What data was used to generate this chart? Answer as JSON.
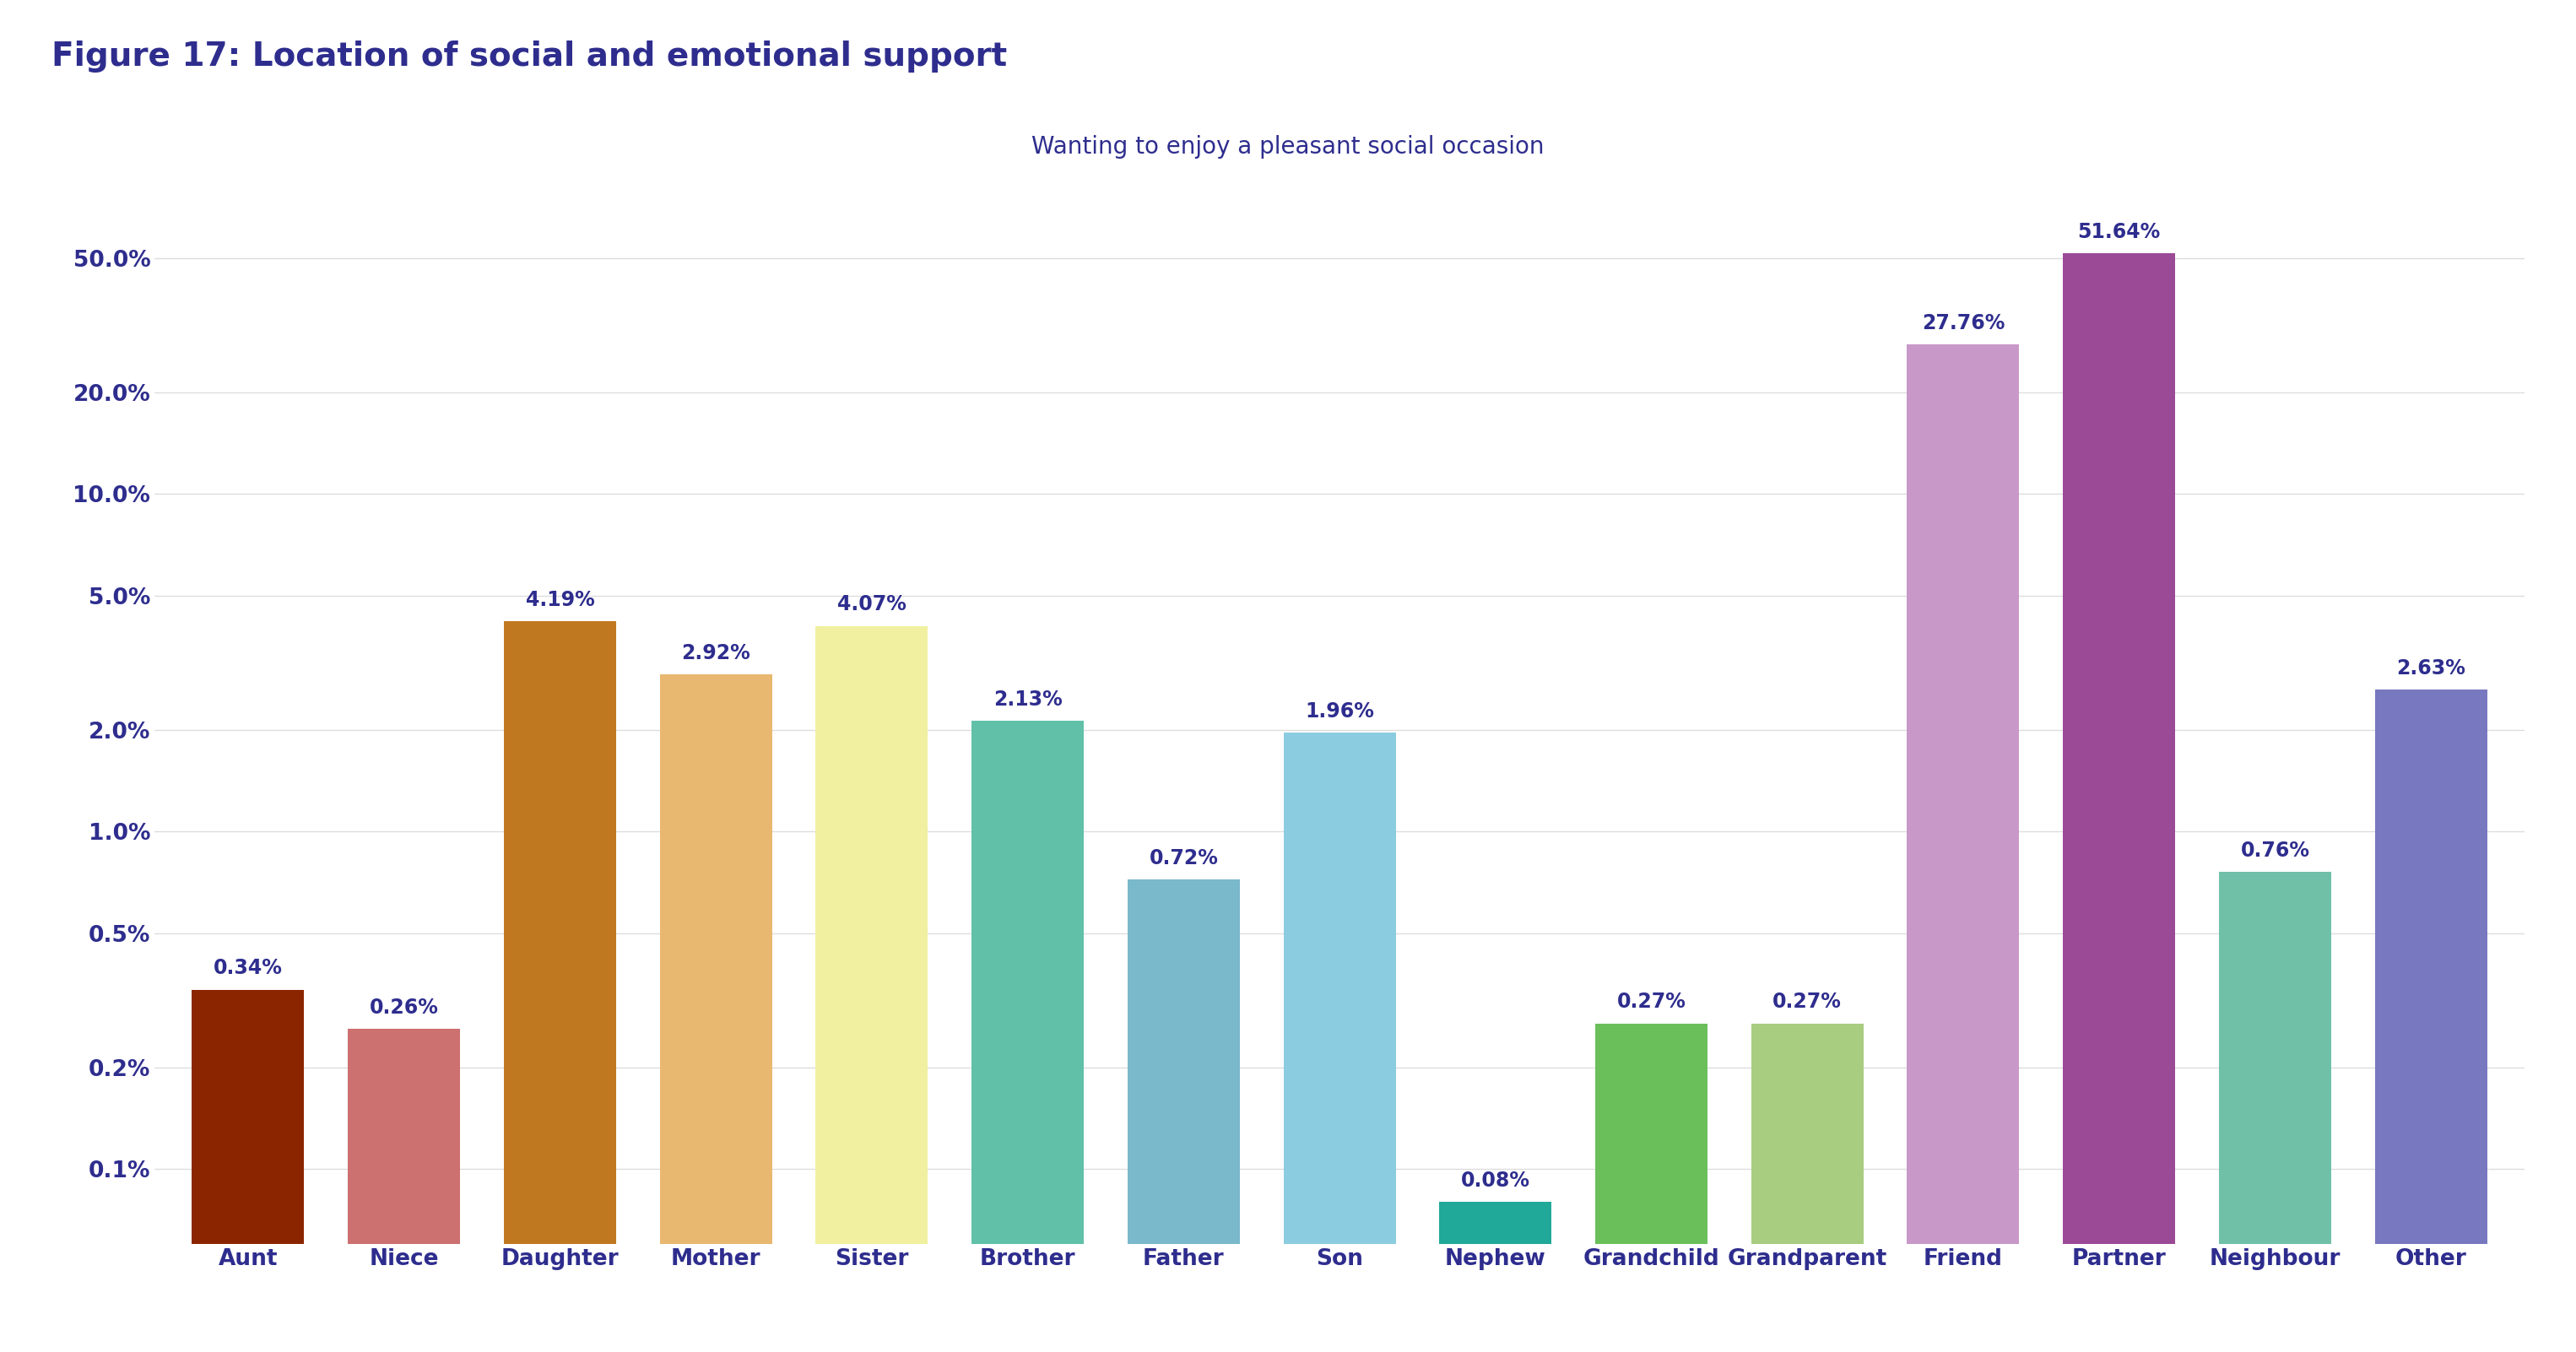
{
  "title": "Figure 17: Location of social and emotional support",
  "subtitle": "Wanting to enjoy a pleasant social occasion",
  "categories": [
    "Aunt",
    "Niece",
    "Daughter",
    "Mother",
    "Sister",
    "Brother",
    "Father",
    "Son",
    "Nephew",
    "Grandchild",
    "Grandparent",
    "Friend",
    "Partner",
    "Neighbour",
    "Other"
  ],
  "values": [
    0.34,
    0.26,
    4.19,
    2.92,
    4.07,
    2.13,
    0.72,
    1.96,
    0.08,
    0.27,
    0.27,
    27.76,
    51.64,
    0.76,
    2.63
  ],
  "bar_colors": [
    "#8B2500",
    "#CC7070",
    "#C07820",
    "#E8B870",
    "#F0F0A0",
    "#60C0A8",
    "#7AB8CC",
    "#8CCCE0",
    "#20A898",
    "#6BBF5A",
    "#A8CC80",
    "#C898C8",
    "#9B4A96",
    "#70C0A8",
    "#7878C0"
  ],
  "title_color": "#2E2D8E",
  "subtitle_color": "#2E2D8E",
  "label_color": "#2E2D8E",
  "axis_color": "#2E2D8E",
  "yticks": [
    0.1,
    0.2,
    0.5,
    1.0,
    2.0,
    5.0,
    10.0,
    20.0,
    50.0
  ],
  "ytick_labels": [
    "0.1%",
    "0.2%",
    "0.5%",
    "1.0%",
    "2.0%",
    "5.0%",
    "10.0%",
    "20.0%",
    "50.0%"
  ],
  "background_color": "#FFFFFF",
  "title_fontsize": 28,
  "subtitle_fontsize": 20,
  "tick_fontsize": 19,
  "label_fontsize": 17,
  "bar_width": 0.72
}
